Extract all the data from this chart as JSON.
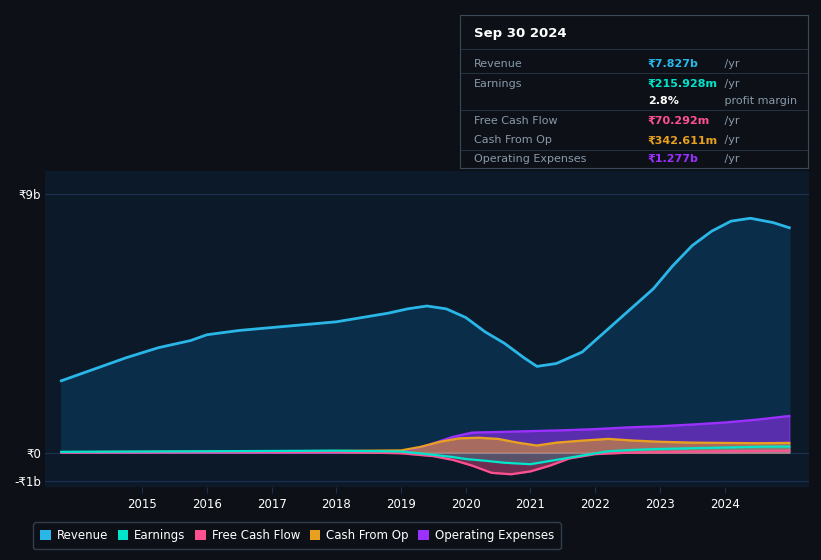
{
  "bg_color": "#0d1117",
  "plot_bg_color": "#0c1929",
  "ylim": [
    -1200000000.0,
    9800000000.0
  ],
  "xlim": [
    2013.5,
    2025.3
  ],
  "ytick_positions": [
    -1000000000.0,
    0,
    9000000000.0
  ],
  "ytick_labels": [
    "-₹1b",
    "₹0",
    "₹9b"
  ],
  "xticks": [
    2015,
    2016,
    2017,
    2018,
    2019,
    2020,
    2021,
    2022,
    2023,
    2024
  ],
  "revenue_color": "#2ab7e8",
  "revenue_fill": "#0a2d4a",
  "earnings_color": "#00e5cc",
  "fcf_color": "#ff5090",
  "cashop_color": "#e8a020",
  "opex_color": "#9b30ff",
  "revenue_x": [
    2013.75,
    2014.25,
    2014.75,
    2015.25,
    2015.75,
    2016.0,
    2016.5,
    2017.0,
    2017.5,
    2018.0,
    2018.4,
    2018.8,
    2019.1,
    2019.4,
    2019.7,
    2020.0,
    2020.3,
    2020.6,
    2020.9,
    2021.1,
    2021.4,
    2021.8,
    2022.1,
    2022.5,
    2022.9,
    2023.2,
    2023.5,
    2023.8,
    2024.1,
    2024.4,
    2024.75,
    2025.0
  ],
  "revenue_y": [
    2500000000.0,
    2900000000.0,
    3300000000.0,
    3650000000.0,
    3900000000.0,
    4100000000.0,
    4250000000.0,
    4350000000.0,
    4450000000.0,
    4550000000.0,
    4700000000.0,
    4850000000.0,
    5000000000.0,
    5100000000.0,
    5000000000.0,
    4700000000.0,
    4200000000.0,
    3800000000.0,
    3300000000.0,
    3000000000.0,
    3100000000.0,
    3500000000.0,
    4100000000.0,
    4900000000.0,
    5700000000.0,
    6500000000.0,
    7200000000.0,
    7700000000.0,
    8050000000.0,
    8150000000.0,
    8000000000.0,
    7820000000.0
  ],
  "earnings_x": [
    2013.75,
    2015.0,
    2016.0,
    2017.0,
    2018.0,
    2019.0,
    2019.4,
    2019.8,
    2020.0,
    2020.3,
    2020.6,
    2021.0,
    2021.4,
    2021.8,
    2022.2,
    2022.6,
    2023.0,
    2023.4,
    2023.8,
    2024.2,
    2024.6,
    2025.0
  ],
  "earnings_y": [
    30000000.0,
    40000000.0,
    50000000.0,
    60000000.0,
    70000000.0,
    40000000.0,
    -50000000.0,
    -150000000.0,
    -220000000.0,
    -280000000.0,
    -350000000.0,
    -400000000.0,
    -250000000.0,
    -100000000.0,
    50000000.0,
    100000000.0,
    130000000.0,
    150000000.0,
    170000000.0,
    190000000.0,
    210000000.0,
    215000000.0
  ],
  "fcf_x": [
    2013.75,
    2015.0,
    2016.0,
    2017.0,
    2018.0,
    2019.0,
    2019.5,
    2019.8,
    2020.1,
    2020.4,
    2020.7,
    2021.0,
    2021.3,
    2021.6,
    2022.0,
    2022.5,
    2023.0,
    2023.5,
    2024.0,
    2024.5,
    2025.0
  ],
  "fcf_y": [
    10000000.0,
    10000000.0,
    20000000.0,
    20000000.0,
    30000000.0,
    -20000000.0,
    -120000000.0,
    -250000000.0,
    -450000000.0,
    -700000000.0,
    -750000000.0,
    -650000000.0,
    -450000000.0,
    -200000000.0,
    -50000000.0,
    0.0,
    20000000.0,
    40000000.0,
    50000000.0,
    60000000.0,
    70000000.0
  ],
  "cashop_x": [
    2013.75,
    2015.0,
    2016.0,
    2017.0,
    2018.0,
    2019.0,
    2019.3,
    2019.6,
    2019.9,
    2020.2,
    2020.5,
    2020.8,
    2021.1,
    2021.4,
    2021.8,
    2022.2,
    2022.6,
    2023.0,
    2023.5,
    2024.0,
    2024.5,
    2025.0
  ],
  "cashop_y": [
    20000000.0,
    30000000.0,
    40000000.0,
    50000000.0,
    60000000.0,
    80000000.0,
    200000000.0,
    380000000.0,
    500000000.0,
    520000000.0,
    480000000.0,
    350000000.0,
    250000000.0,
    350000000.0,
    420000000.0,
    480000000.0,
    420000000.0,
    380000000.0,
    350000000.0,
    340000000.0,
    330000000.0,
    340000000.0
  ],
  "opex_x": [
    2013.75,
    2015.0,
    2016.0,
    2017.0,
    2018.0,
    2019.0,
    2019.4,
    2019.8,
    2020.1,
    2020.5,
    2021.0,
    2021.5,
    2022.0,
    2022.5,
    2023.0,
    2023.5,
    2024.0,
    2024.5,
    2025.0
  ],
  "opex_y": [
    5000000.0,
    10000000.0,
    10000000.0,
    10000000.0,
    15000000.0,
    40000000.0,
    250000000.0,
    550000000.0,
    700000000.0,
    720000000.0,
    750000000.0,
    780000000.0,
    820000000.0,
    880000000.0,
    920000000.0,
    980000000.0,
    1050000000.0,
    1150000000.0,
    1277000000.0
  ],
  "hline_color": "#1e3050",
  "info_title": "Sep 30 2024",
  "info_rows": [
    {
      "label": "Revenue",
      "value": "₹7.827b",
      "value_color": "#2ab7e8",
      "suffix": " /yr"
    },
    {
      "label": "Earnings",
      "value": "₹215.928m",
      "value_color": "#00e5cc",
      "suffix": " /yr"
    },
    {
      "label": "",
      "value": "2.8%",
      "value_color": "white",
      "suffix": " profit margin"
    },
    {
      "label": "Free Cash Flow",
      "value": "₹70.292m",
      "value_color": "#ff5090",
      "suffix": " /yr"
    },
    {
      "label": "Cash From Op",
      "value": "₹342.611m",
      "value_color": "#e8a020",
      "suffix": " /yr"
    },
    {
      "label": "Operating Expenses",
      "value": "₹1.277b",
      "value_color": "#9b30ff",
      "suffix": " /yr"
    }
  ],
  "legend_items": [
    {
      "label": "Revenue",
      "color": "#2ab7e8"
    },
    {
      "label": "Earnings",
      "color": "#00e5cc"
    },
    {
      "label": "Free Cash Flow",
      "color": "#ff5090"
    },
    {
      "label": "Cash From Op",
      "color": "#e8a020"
    },
    {
      "label": "Operating Expenses",
      "color": "#9b30ff"
    }
  ]
}
